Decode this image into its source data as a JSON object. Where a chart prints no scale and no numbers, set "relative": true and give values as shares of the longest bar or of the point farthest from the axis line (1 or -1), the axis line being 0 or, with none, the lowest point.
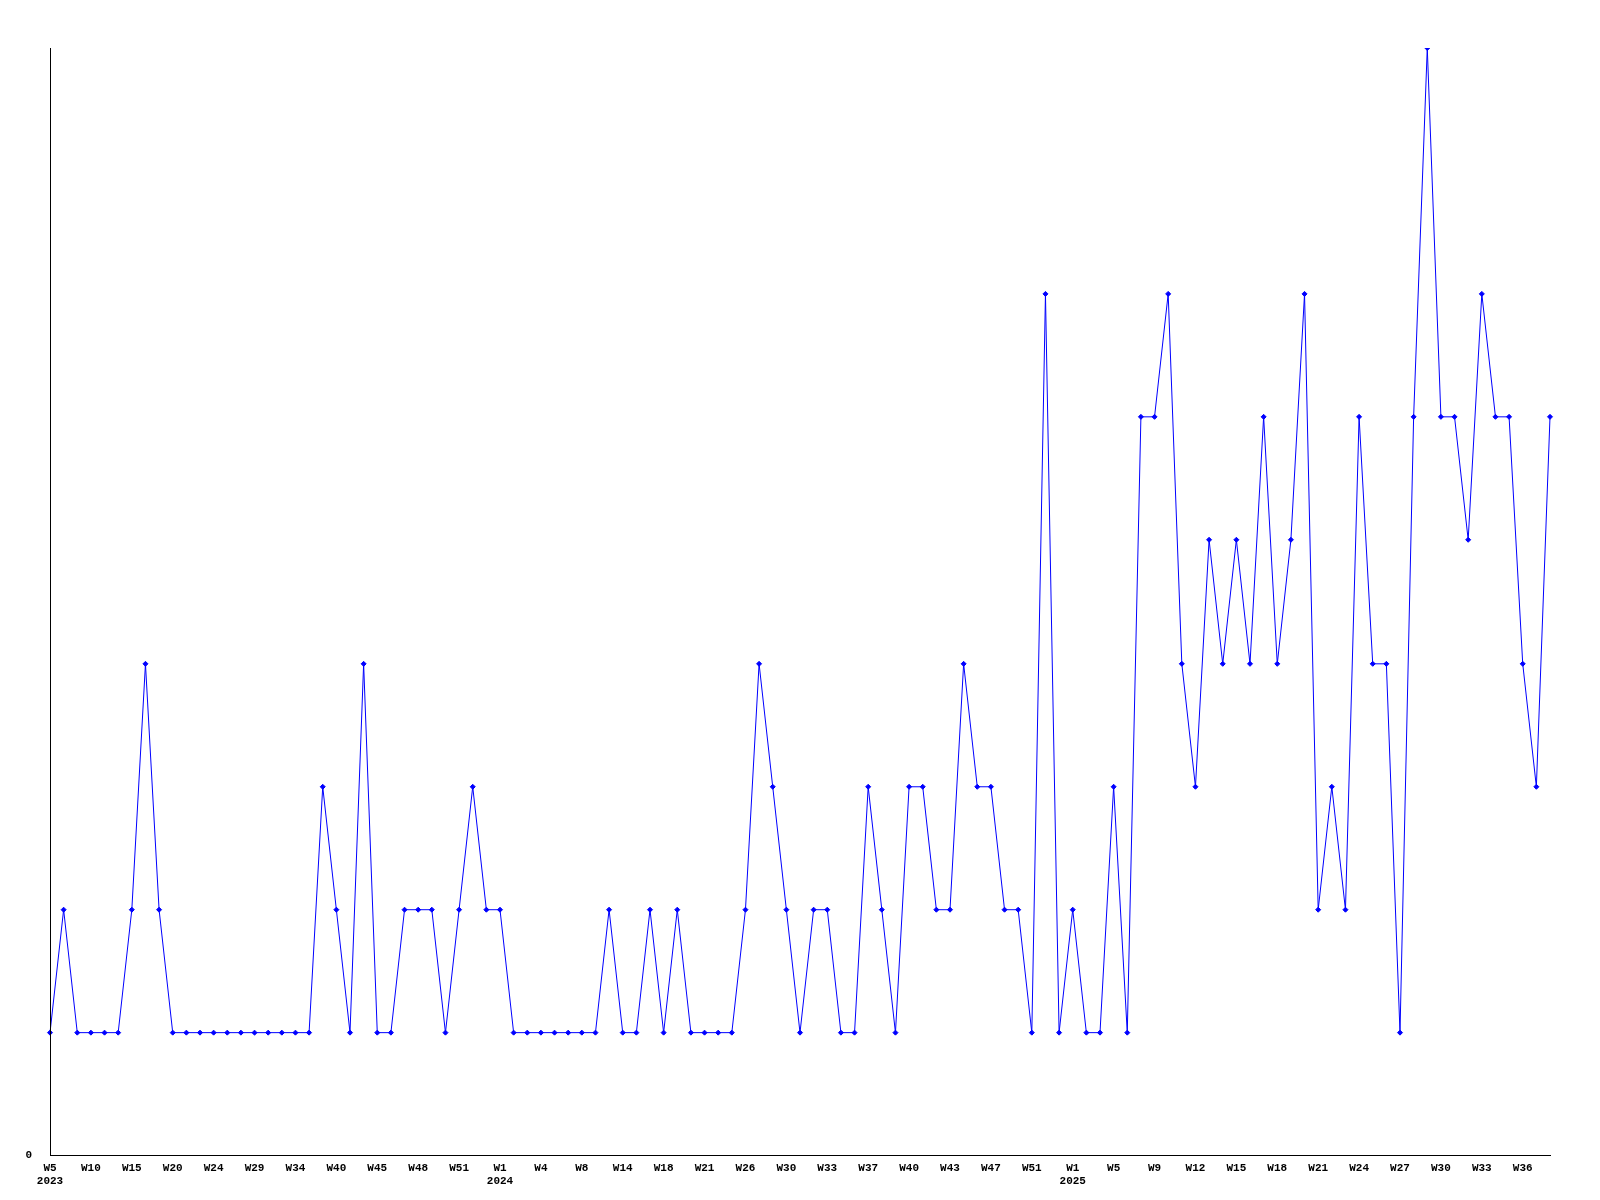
{
  "chart_data": {
    "type": "line",
    "relative": true,
    "grid": false,
    "legend": false,
    "marker": "diamond",
    "line_style": "solid",
    "annotations": [
      "0"
    ],
    "categories": [
      "W5\n2023",
      null,
      null,
      "W10",
      null,
      null,
      "W15",
      null,
      null,
      "W20",
      null,
      null,
      "W24",
      null,
      null,
      "W29",
      null,
      null,
      "W34",
      null,
      null,
      "W40",
      null,
      null,
      "W45",
      null,
      null,
      "W48",
      null,
      null,
      "W51",
      null,
      null,
      "W1\n2024",
      null,
      null,
      "W4",
      null,
      null,
      "W8",
      null,
      null,
      "W14",
      null,
      null,
      "W18",
      null,
      null,
      "W21",
      null,
      null,
      "W26",
      null,
      null,
      "W30",
      null,
      null,
      "W33",
      null,
      null,
      "W37",
      null,
      null,
      "W40",
      null,
      null,
      "W43",
      null,
      null,
      "W47",
      null,
      null,
      "W51",
      null,
      null,
      "W1\n2025",
      null,
      null,
      "W5",
      null,
      null,
      "W9",
      null,
      null,
      "W12",
      null,
      null,
      "W15",
      null,
      null,
      "W18",
      null,
      null,
      "W21",
      null,
      null,
      "W24",
      null,
      null,
      "W27",
      null,
      null,
      "W30",
      null,
      null,
      "W33",
      null,
      null,
      "W36",
      null,
      null
    ],
    "series": [
      {
        "color": "#0000ff",
        "values": [
          0.111,
          0.222,
          0.111,
          0.111,
          0.111,
          0.111,
          0.222,
          0.444,
          0.222,
          0.111,
          0.111,
          0.111,
          0.111,
          0.111,
          0.111,
          0.111,
          0.111,
          0.111,
          0.111,
          0.111,
          0.333,
          0.222,
          0.111,
          0.444,
          0.111,
          0.111,
          0.222,
          0.222,
          0.222,
          0.111,
          0.222,
          0.333,
          0.222,
          0.222,
          0.111,
          0.111,
          0.111,
          0.111,
          0.111,
          0.111,
          0.111,
          0.222,
          0.111,
          0.111,
          0.222,
          0.111,
          0.222,
          0.111,
          0.111,
          0.111,
          0.111,
          0.222,
          0.444,
          0.333,
          0.222,
          0.111,
          0.222,
          0.222,
          0.111,
          0.111,
          0.333,
          0.222,
          0.111,
          0.333,
          0.333,
          0.222,
          0.222,
          0.444,
          0.333,
          0.333,
          0.222,
          0.222,
          0.111,
          0.778,
          0.111,
          0.222,
          0.111,
          0.111,
          0.333,
          0.111,
          0.667,
          0.667,
          0.778,
          0.444,
          0.333,
          0.556,
          0.444,
          0.556,
          0.444,
          0.667,
          0.444,
          0.556,
          0.778,
          0.222,
          0.333,
          0.222,
          0.667,
          0.444,
          0.444,
          0.111,
          0.667,
          1,
          0.667,
          0.667,
          0.556,
          0.778,
          0.667,
          0.667,
          0.444,
          0.333,
          0.667
        ]
      }
    ]
  }
}
